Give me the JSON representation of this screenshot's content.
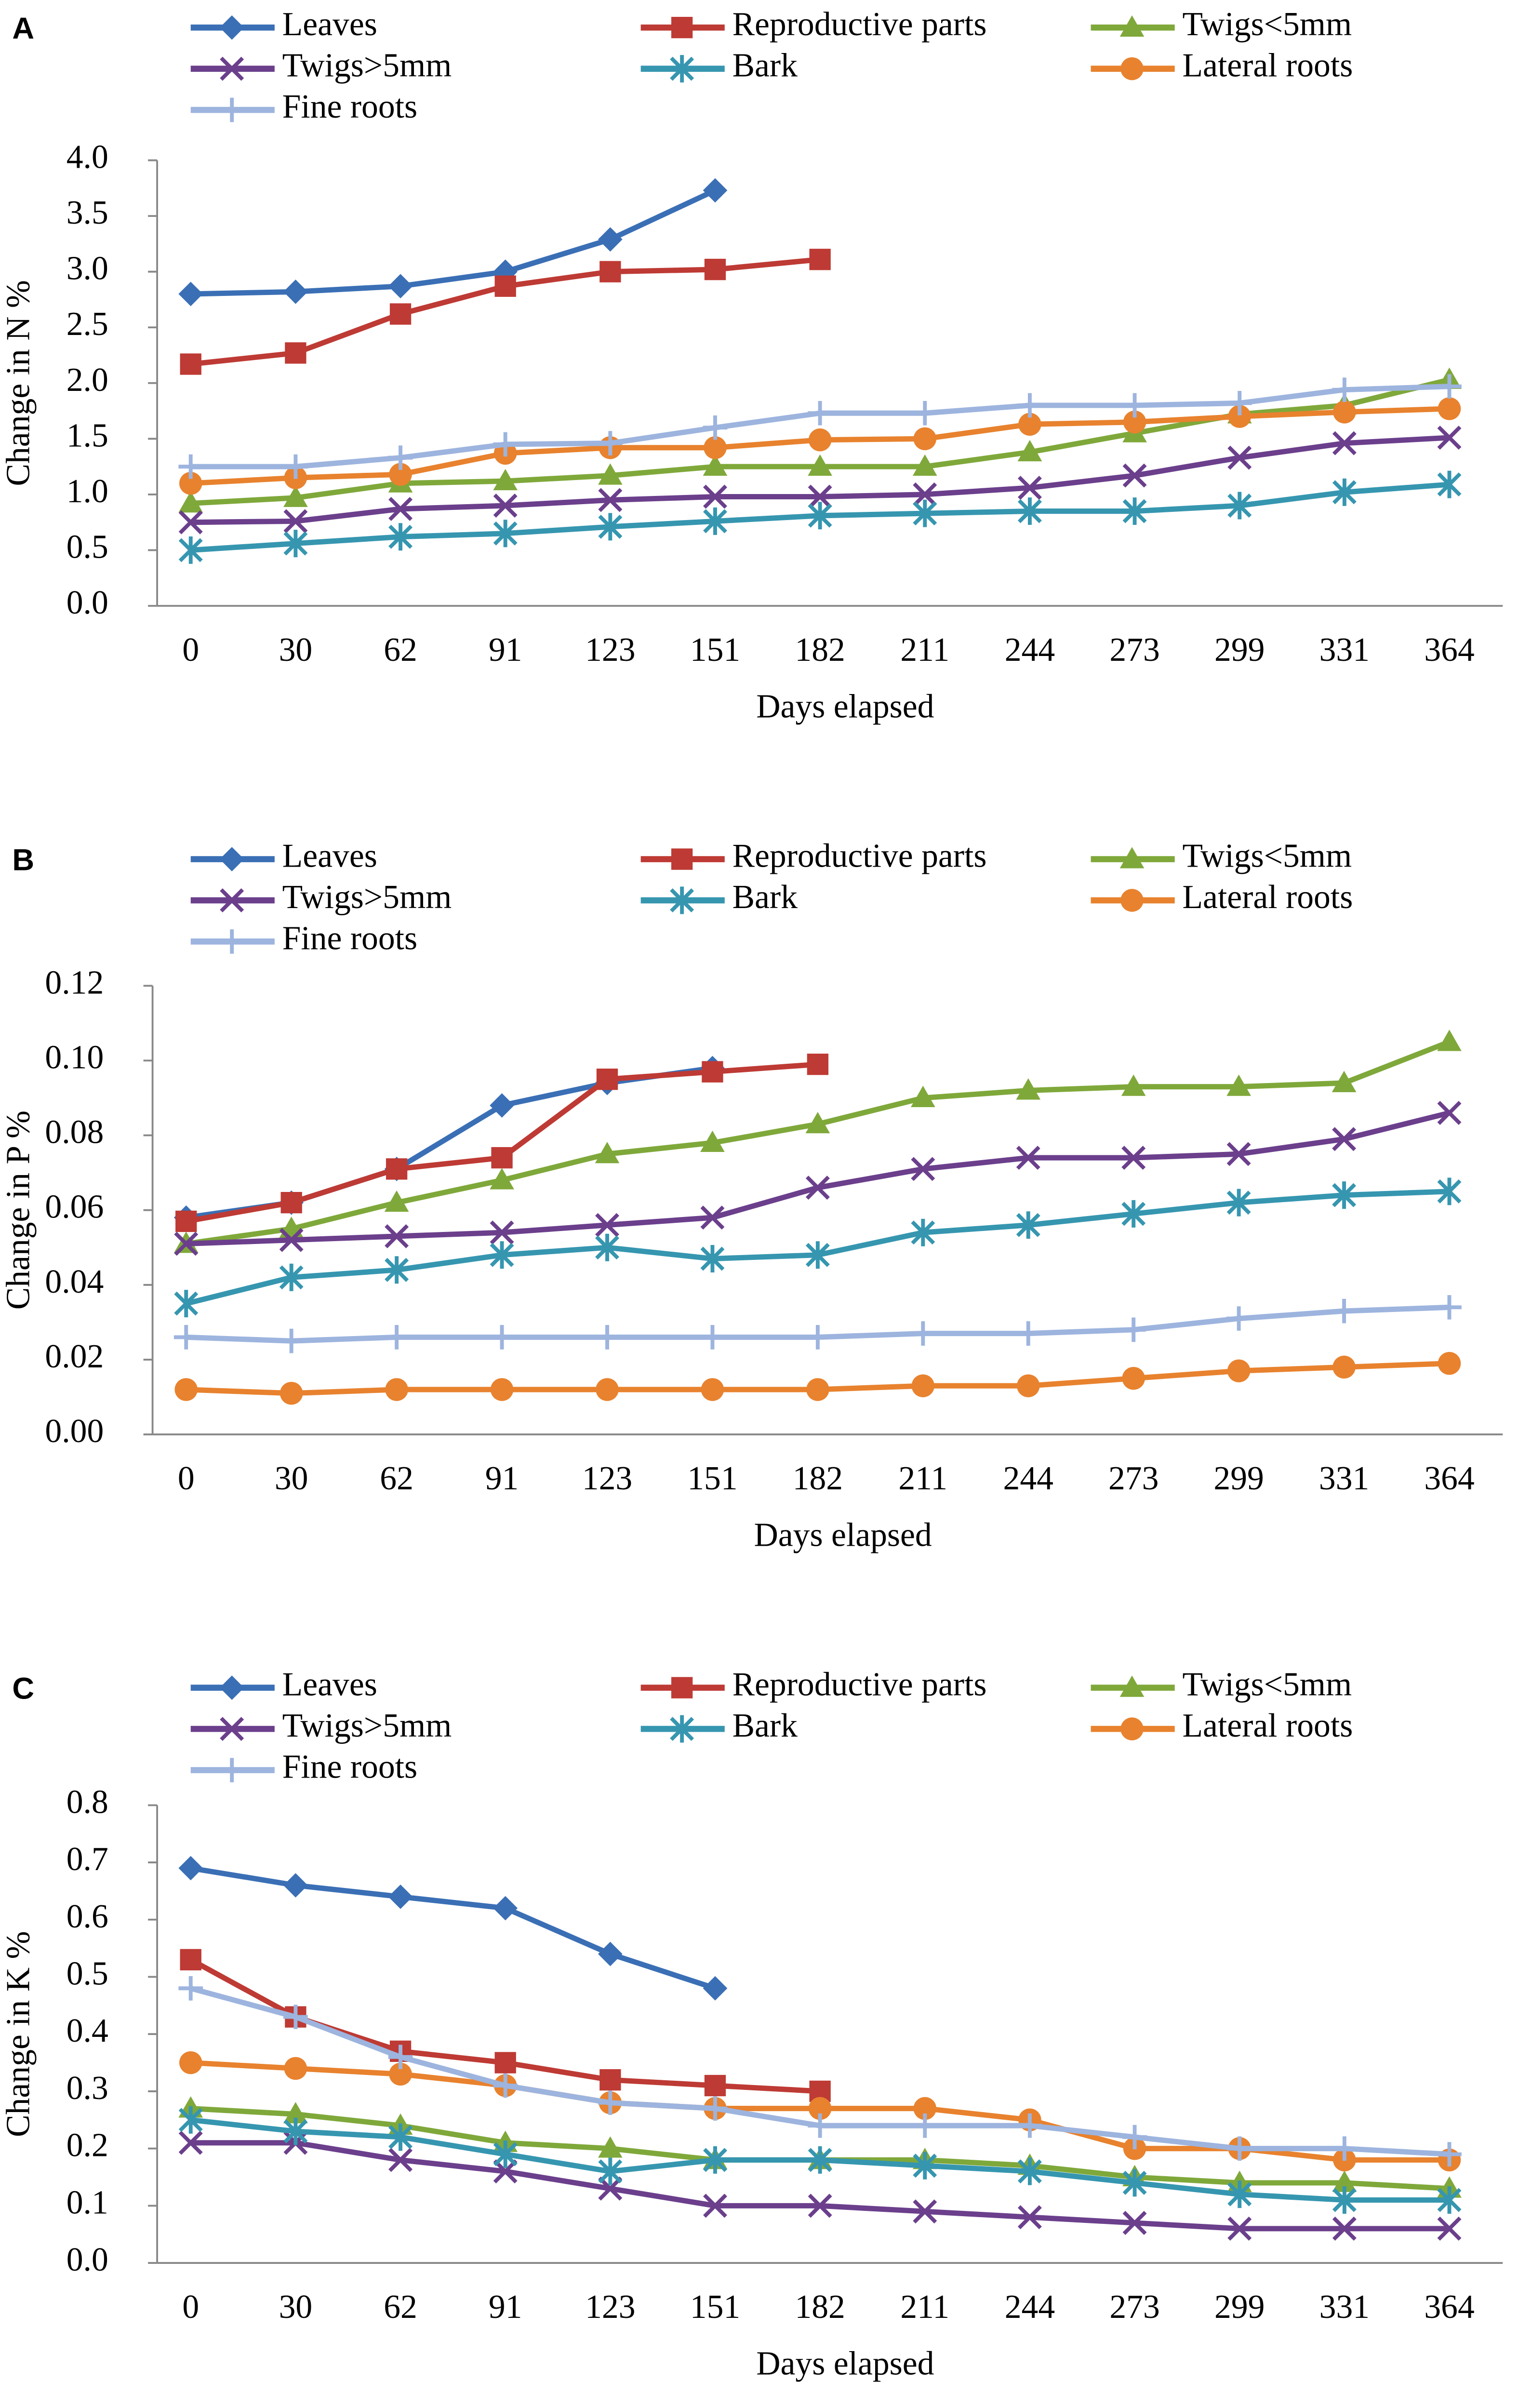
{
  "chart_data": [
    {
      "type": "line",
      "panel_label": "A",
      "ylabel": "Change in N %",
      "xlabel": "Days elapsed",
      "categories": [
        "0",
        "30",
        "62",
        "91",
        "123",
        "151",
        "182",
        "211",
        "244",
        "273",
        "299",
        "331",
        "364"
      ],
      "ylim": [
        0,
        4
      ],
      "yticks": [
        {
          "value": 0,
          "label": "0.0"
        },
        0.5,
        {
          "value": 1,
          "label": "1.0"
        },
        1.5,
        {
          "value": 2,
          "label": "2.0"
        },
        2.5,
        {
          "value": 3,
          "label": "3.0"
        },
        3.5,
        {
          "value": 4,
          "label": "4.0"
        }
      ],
      "series": [
        {
          "name": "Leaves",
          "color": "#3a6fb5",
          "marker": "diamond",
          "values": [
            2.8,
            2.82,
            2.87,
            3.0,
            3.29,
            3.73,
            null,
            null,
            null,
            null,
            null,
            null,
            null
          ]
        },
        {
          "name": "Reproductive parts",
          "color": "#be3a34",
          "marker": "square",
          "values": [
            2.17,
            2.27,
            2.62,
            2.87,
            3.0,
            3.02,
            3.11,
            null,
            null,
            null,
            null,
            null,
            null
          ]
        },
        {
          "name": "Twigs<5mm",
          "color": "#7fa83a",
          "marker": "triangle",
          "values": [
            0.92,
            0.97,
            1.1,
            1.12,
            1.17,
            1.25,
            1.25,
            1.25,
            1.38,
            1.55,
            1.72,
            1.8,
            2.03
          ]
        },
        {
          "name": "Twigs>5mm",
          "color": "#6b3f8c",
          "marker": "x",
          "values": [
            0.75,
            0.76,
            0.87,
            0.9,
            0.95,
            0.98,
            0.98,
            1.0,
            1.06,
            1.17,
            1.33,
            1.46,
            1.51
          ]
        },
        {
          "name": "Bark",
          "color": "#3696b0",
          "marker": "asterisk",
          "values": [
            0.5,
            0.56,
            0.62,
            0.65,
            0.71,
            0.76,
            0.81,
            0.83,
            0.85,
            0.85,
            0.9,
            1.02,
            1.09
          ]
        },
        {
          "name": "Lateral roots",
          "color": "#e8822e",
          "marker": "circle",
          "values": [
            1.1,
            1.15,
            1.18,
            1.37,
            1.42,
            1.42,
            1.49,
            1.5,
            1.63,
            1.65,
            1.7,
            1.74,
            1.77
          ]
        },
        {
          "name": "Fine roots",
          "color": "#9db4de",
          "marker": "plus",
          "values": [
            1.25,
            1.25,
            1.33,
            1.45,
            1.46,
            1.6,
            1.73,
            1.73,
            1.8,
            1.8,
            1.82,
            1.94,
            1.97
          ]
        }
      ]
    },
    {
      "type": "line",
      "panel_label": "B",
      "ylabel": "Change in P %",
      "xlabel": "Days elapsed",
      "categories": [
        "0",
        "30",
        "62",
        "91",
        "123",
        "151",
        "182",
        "211",
        "244",
        "273",
        "299",
        "331",
        "364"
      ],
      "ylim": [
        0,
        0.12
      ],
      "yticks": [
        {
          "value": 0,
          "label": "0.00"
        },
        0.02,
        0.04,
        0.06,
        0.08,
        {
          "value": 0.1,
          "label": "0.10"
        },
        0.12
      ],
      "series": [
        {
          "name": "Leaves",
          "color": "#3a6fb5",
          "marker": "diamond",
          "values": [
            0.058,
            0.062,
            0.071,
            0.088,
            0.094,
            0.098,
            null,
            null,
            null,
            null,
            null,
            null,
            null
          ]
        },
        {
          "name": "Reproductive parts",
          "color": "#be3a34",
          "marker": "square",
          "values": [
            0.057,
            0.062,
            0.071,
            0.074,
            0.095,
            0.097,
            0.099,
            null,
            null,
            null,
            null,
            null,
            null
          ]
        },
        {
          "name": "Twigs<5mm",
          "color": "#7fa83a",
          "marker": "triangle",
          "values": [
            0.051,
            0.055,
            0.062,
            0.068,
            0.075,
            0.078,
            0.083,
            0.09,
            0.092,
            0.093,
            0.093,
            0.094,
            0.105
          ]
        },
        {
          "name": "Twigs>5mm",
          "color": "#6b3f8c",
          "marker": "x",
          "values": [
            0.051,
            0.052,
            0.053,
            0.054,
            0.056,
            0.058,
            0.066,
            0.071,
            0.074,
            0.074,
            0.075,
            0.079,
            0.086
          ]
        },
        {
          "name": "Bark",
          "color": "#3696b0",
          "marker": "asterisk",
          "values": [
            0.035,
            0.042,
            0.044,
            0.048,
            0.05,
            0.047,
            0.048,
            0.054,
            0.056,
            0.059,
            0.062,
            0.064,
            0.065
          ]
        },
        {
          "name": "Lateral roots",
          "color": "#e8822e",
          "marker": "circle",
          "values": [
            0.012,
            0.011,
            0.012,
            0.012,
            0.012,
            0.012,
            0.012,
            0.013,
            0.013,
            0.015,
            0.017,
            0.018,
            0.019
          ]
        },
        {
          "name": "Fine roots",
          "color": "#9db4de",
          "marker": "plus",
          "values": [
            0.026,
            0.025,
            0.026,
            0.026,
            0.026,
            0.026,
            0.026,
            0.027,
            0.027,
            0.028,
            0.031,
            0.033,
            0.034
          ]
        }
      ]
    },
    {
      "type": "line",
      "panel_label": "C",
      "ylabel": "Change in K %",
      "xlabel": "Days elapsed",
      "categories": [
        "0",
        "30",
        "62",
        "91",
        "123",
        "151",
        "182",
        "211",
        "244",
        "273",
        "299",
        "331",
        "364"
      ],
      "ylim": [
        0,
        0.8
      ],
      "yticks": [
        {
          "value": 0,
          "label": "0.0"
        },
        0.1,
        0.2,
        0.3,
        0.4,
        0.5,
        0.6,
        0.7,
        0.8
      ],
      "series": [
        {
          "name": "Leaves",
          "color": "#3a6fb5",
          "marker": "diamond",
          "values": [
            0.69,
            0.66,
            0.64,
            0.62,
            0.54,
            0.48,
            null,
            null,
            null,
            null,
            null,
            null,
            null
          ]
        },
        {
          "name": "Reproductive parts",
          "color": "#be3a34",
          "marker": "square",
          "values": [
            0.53,
            0.43,
            0.37,
            0.35,
            0.32,
            0.31,
            0.3,
            null,
            null,
            null,
            null,
            null,
            null
          ]
        },
        {
          "name": "Twigs<5mm",
          "color": "#7fa83a",
          "marker": "triangle",
          "values": [
            0.27,
            0.26,
            0.24,
            0.21,
            0.2,
            0.18,
            0.18,
            0.18,
            0.17,
            0.15,
            0.14,
            0.14,
            0.13
          ]
        },
        {
          "name": "Twigs>5mm",
          "color": "#6b3f8c",
          "marker": "x",
          "values": [
            0.21,
            0.21,
            0.18,
            0.16,
            0.13,
            0.1,
            0.1,
            0.09,
            0.08,
            0.07,
            0.06,
            0.06,
            0.06
          ]
        },
        {
          "name": "Bark",
          "color": "#3696b0",
          "marker": "asterisk",
          "values": [
            0.25,
            0.23,
            0.22,
            0.19,
            0.16,
            0.18,
            0.18,
            0.17,
            0.16,
            0.14,
            0.12,
            0.11,
            0.11
          ]
        },
        {
          "name": "Lateral roots",
          "color": "#e8822e",
          "marker": "circle",
          "values": [
            0.35,
            0.34,
            0.33,
            0.31,
            0.28,
            0.27,
            0.27,
            0.27,
            0.25,
            0.2,
            0.2,
            0.18,
            0.18
          ]
        },
        {
          "name": "Fine roots",
          "color": "#9db4de",
          "marker": "plus",
          "values": [
            0.48,
            0.43,
            0.36,
            0.31,
            0.28,
            0.27,
            0.24,
            0.24,
            0.24,
            0.22,
            0.2,
            0.2,
            0.19
          ]
        }
      ]
    }
  ]
}
